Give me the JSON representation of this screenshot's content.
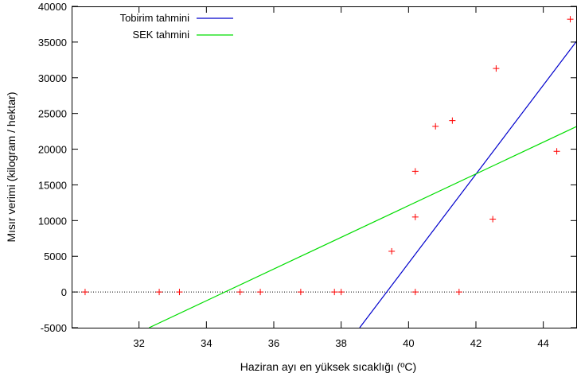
{
  "chart_data": {
    "type": "scatter",
    "xlabel": "Haziran ayı en yüksek sıcaklığı (ºC)",
    "ylabel": "Mısır verimi (kilogram / hektar)",
    "xlim": [
      30,
      45
    ],
    "ylim": [
      -5000,
      40000
    ],
    "x_ticks": [
      32,
      34,
      36,
      38,
      40,
      42,
      44
    ],
    "y_ticks": [
      -5000,
      0,
      5000,
      10000,
      15000,
      20000,
      25000,
      30000,
      35000,
      40000
    ],
    "zero_line": true,
    "legend_position": "top-left",
    "points": {
      "color": "#ff0000",
      "marker": "plus",
      "x": [
        30.4,
        32.6,
        33.2,
        35.0,
        35.6,
        36.8,
        37.8,
        38.0,
        39.5,
        40.2,
        40.2,
        40.2,
        40.8,
        41.3,
        41.5,
        42.5,
        42.6,
        44.4,
        44.8
      ],
      "y": [
        0,
        0,
        0,
        0,
        0,
        0,
        0,
        0,
        5700,
        16900,
        10500,
        0,
        23200,
        24000,
        0,
        10200,
        31300,
        19700,
        38200
      ]
    },
    "series": [
      {
        "name": "Tobirim tahmini",
        "color": "#0000cc",
        "type": "line",
        "x": [
          38.55,
          45
        ],
        "y": [
          -5000,
          35200
        ]
      },
      {
        "name": "SEK tahmini",
        "color": "#00dd00",
        "type": "line",
        "x": [
          32.3,
          45
        ],
        "y": [
          -5000,
          23200
        ]
      }
    ]
  }
}
